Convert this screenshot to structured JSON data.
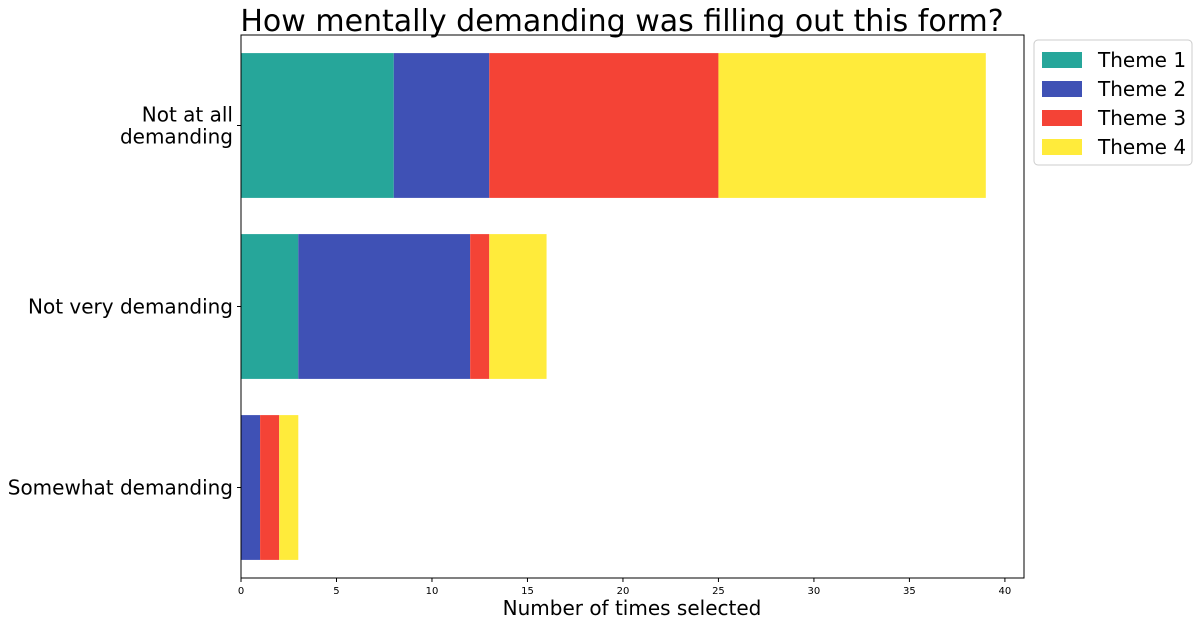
{
  "chart_data": {
    "type": "bar",
    "orientation": "horizontal",
    "stacked": true,
    "title": "How mentally demanding was filling out this form?",
    "xlabel": "Number of times selected",
    "ylabel": "",
    "categories": [
      [
        "Not at all",
        "demanding"
      ],
      [
        "Not very demanding"
      ],
      [
        "Somewhat demanding"
      ]
    ],
    "series": [
      {
        "name": "Theme 1",
        "color": "#26a69a",
        "values": [
          8,
          3,
          0
        ]
      },
      {
        "name": "Theme 2",
        "color": "#3f51b5",
        "values": [
          5,
          9,
          1
        ]
      },
      {
        "name": "Theme 3",
        "color": "#f44336",
        "values": [
          12,
          1,
          1
        ]
      },
      {
        "name": "Theme 4",
        "color": "#ffeb3b",
        "values": [
          14,
          3,
          1
        ]
      }
    ],
    "xlim": [
      0,
      41
    ],
    "xticks": [
      0,
      5,
      10,
      15,
      20,
      25,
      30,
      35,
      40
    ],
    "grid": false,
    "legend_position": "outside top-right"
  }
}
